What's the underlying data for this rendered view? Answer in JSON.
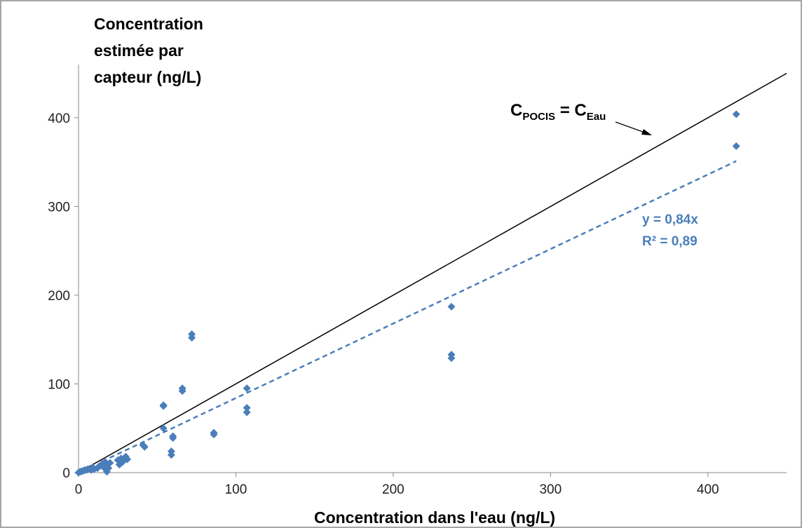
{
  "chart_data": {
    "type": "scatter",
    "title": "",
    "ylabel_lines": [
      "Concentration",
      "estimée par",
      "capteur (ng/L)"
    ],
    "xlabel": "Concentration dans l'eau (ng/L)",
    "xlim": [
      0,
      450
    ],
    "ylim": [
      0,
      460
    ],
    "x_ticks": [
      0,
      100,
      200,
      300,
      400
    ],
    "y_ticks": [
      0,
      100,
      200,
      300,
      400
    ],
    "grid": false,
    "colors": {
      "points": "#4a7ebb",
      "trend": "#4a7ebb",
      "identity": "#000000"
    },
    "series": [
      {
        "points": [
          [
            0,
            0
          ],
          [
            1,
            1
          ],
          [
            2,
            1.5
          ],
          [
            3,
            2
          ],
          [
            4,
            3
          ],
          [
            5,
            3
          ],
          [
            6,
            4
          ],
          [
            8,
            3
          ],
          [
            9,
            6
          ],
          [
            10,
            4
          ],
          [
            12,
            5
          ],
          [
            13,
            7
          ],
          [
            14,
            8
          ],
          [
            15,
            10
          ],
          [
            16,
            6
          ],
          [
            17,
            12
          ],
          [
            18,
            9
          ],
          [
            18,
            1
          ],
          [
            19,
            5
          ],
          [
            20,
            11
          ],
          [
            25,
            14
          ],
          [
            26,
            9
          ],
          [
            27,
            16
          ],
          [
            28,
            12
          ],
          [
            30,
            18
          ],
          [
            31,
            15
          ],
          [
            41,
            31
          ],
          [
            42,
            29
          ],
          [
            54,
            76
          ],
          [
            54,
            75
          ],
          [
            54,
            50
          ],
          [
            59,
            24
          ],
          [
            59,
            20
          ],
          [
            60,
            41
          ],
          [
            60,
            39
          ],
          [
            66,
            95
          ],
          [
            66,
            92
          ],
          [
            72,
            156
          ],
          [
            72,
            152
          ],
          [
            86,
            45
          ],
          [
            86,
            43
          ],
          [
            107,
            95
          ],
          [
            107,
            73
          ],
          [
            107,
            68
          ],
          [
            237,
            187
          ],
          [
            237,
            133
          ],
          [
            237,
            129
          ],
          [
            418,
            404
          ],
          [
            418,
            368
          ]
        ]
      }
    ],
    "identity_line": {
      "x_start": 0,
      "x_end": 450
    },
    "regression": {
      "slope": 0.84,
      "x_start": 15,
      "x_end": 418
    },
    "annotations": {
      "identity_main": "C",
      "identity_sub1": "POCIS",
      "identity_mid": " = C",
      "identity_sub2": "Eau",
      "equation": "y = 0,84x",
      "r_squared": "R² = 0,89"
    }
  }
}
